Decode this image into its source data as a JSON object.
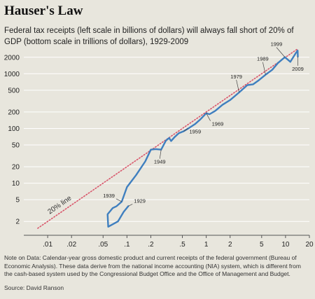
{
  "header": {
    "title": "Hauser's Law",
    "subtitle": "Federal tax receipts (left scale in billions of dollars) will always fall short of 20% of GDP (bottom scale in trillions of dollars), 1929-2009"
  },
  "footer": {
    "note": "Note on Data: Calendar-year gross domestic product and current receipts of the federal government (Bureau of Economic Analysis). These data derive from the national income accounting (NIA) system, which is different from the cash-based system used by the Congressional Budget Office and the Office of Management and Budget.",
    "source": "Source: David Ranson"
  },
  "colors": {
    "series": "#3f7fbf",
    "reference": "#d9556a",
    "background": "#e8e6dd",
    "grid": "#ffffff"
  },
  "chart_data": {
    "type": "line",
    "title": "",
    "xlabel": "",
    "ylabel": "",
    "x_scale": "log",
    "y_scale": "log",
    "xlim": [
      0.005,
      20
    ],
    "ylim": [
      1.5,
      3000
    ],
    "x_ticks": [
      0.01,
      0.02,
      0.05,
      0.1,
      0.2,
      0.5,
      1,
      2,
      5,
      10,
      20
    ],
    "x_tick_labels": [
      ".01",
      ".02",
      ".05",
      ".1",
      ".2",
      ".5",
      "1",
      "2",
      "5",
      "10",
      "20"
    ],
    "y_ticks": [
      2,
      5,
      10,
      20,
      50,
      100,
      200,
      500,
      1000,
      2000
    ],
    "y_tick_labels": [
      "2",
      "5",
      "10",
      "20",
      "50",
      "100",
      "200",
      "500",
      "1000",
      "2000"
    ],
    "grid": "horizontal",
    "series": [
      {
        "name": "",
        "points": [
          {
            "x": 0.104,
            "y": 3.8
          },
          {
            "x": 0.091,
            "y": 3.0
          },
          {
            "x": 0.077,
            "y": 2.0
          },
          {
            "x": 0.058,
            "y": 1.6
          },
          {
            "x": 0.057,
            "y": 2.7
          },
          {
            "x": 0.066,
            "y": 3.5
          },
          {
            "x": 0.074,
            "y": 3.8
          },
          {
            "x": 0.086,
            "y": 4.6
          },
          {
            "x": 0.1,
            "y": 8.5
          },
          {
            "x": 0.13,
            "y": 14
          },
          {
            "x": 0.17,
            "y": 25
          },
          {
            "x": 0.2,
            "y": 41
          },
          {
            "x": 0.23,
            "y": 42
          },
          {
            "x": 0.27,
            "y": 41
          },
          {
            "x": 0.31,
            "y": 60
          },
          {
            "x": 0.34,
            "y": 67
          },
          {
            "x": 0.36,
            "y": 59
          },
          {
            "x": 0.4,
            "y": 70
          },
          {
            "x": 0.45,
            "y": 82
          },
          {
            "x": 0.52,
            "y": 89
          },
          {
            "x": 0.6,
            "y": 101
          },
          {
            "x": 0.72,
            "y": 120
          },
          {
            "x": 0.85,
            "y": 148
          },
          {
            "x": 1.0,
            "y": 190
          },
          {
            "x": 1.1,
            "y": 182
          },
          {
            "x": 1.3,
            "y": 210
          },
          {
            "x": 1.6,
            "y": 270
          },
          {
            "x": 2.0,
            "y": 330
          },
          {
            "x": 2.6,
            "y": 455
          },
          {
            "x": 3.3,
            "y": 620
          },
          {
            "x": 3.9,
            "y": 640
          },
          {
            "x": 4.6,
            "y": 760
          },
          {
            "x": 5.6,
            "y": 960
          },
          {
            "x": 6.8,
            "y": 1180
          },
          {
            "x": 8.0,
            "y": 1560
          },
          {
            "x": 9.8,
            "y": 2010
          },
          {
            "x": 11.5,
            "y": 1650
          },
          {
            "x": 13.5,
            "y": 2400
          },
          {
            "x": 14.2,
            "y": 2650
          },
          {
            "x": 14.3,
            "y": 2050
          }
        ]
      },
      {
        "name": "20% line",
        "style": "dotted",
        "points": [
          {
            "x": 0.0075,
            "y": 1.5
          },
          {
            "x": 14.3,
            "y": 2860
          }
        ]
      }
    ],
    "annotations": [
      {
        "text": "1929",
        "x": 0.104,
        "y": 3.8
      },
      {
        "text": "1939",
        "x": 0.086,
        "y": 4.6
      },
      {
        "text": "1949",
        "x": 0.27,
        "y": 41
      },
      {
        "text": "1959",
        "x": 0.52,
        "y": 89
      },
      {
        "text": "1969",
        "x": 1.0,
        "y": 190
      },
      {
        "text": "1979",
        "x": 2.6,
        "y": 455
      },
      {
        "text": "1989",
        "x": 5.6,
        "y": 960
      },
      {
        "text": "1999",
        "x": 9.8,
        "y": 2010
      },
      {
        "text": "2009",
        "x": 14.3,
        "y": 2050
      }
    ]
  }
}
